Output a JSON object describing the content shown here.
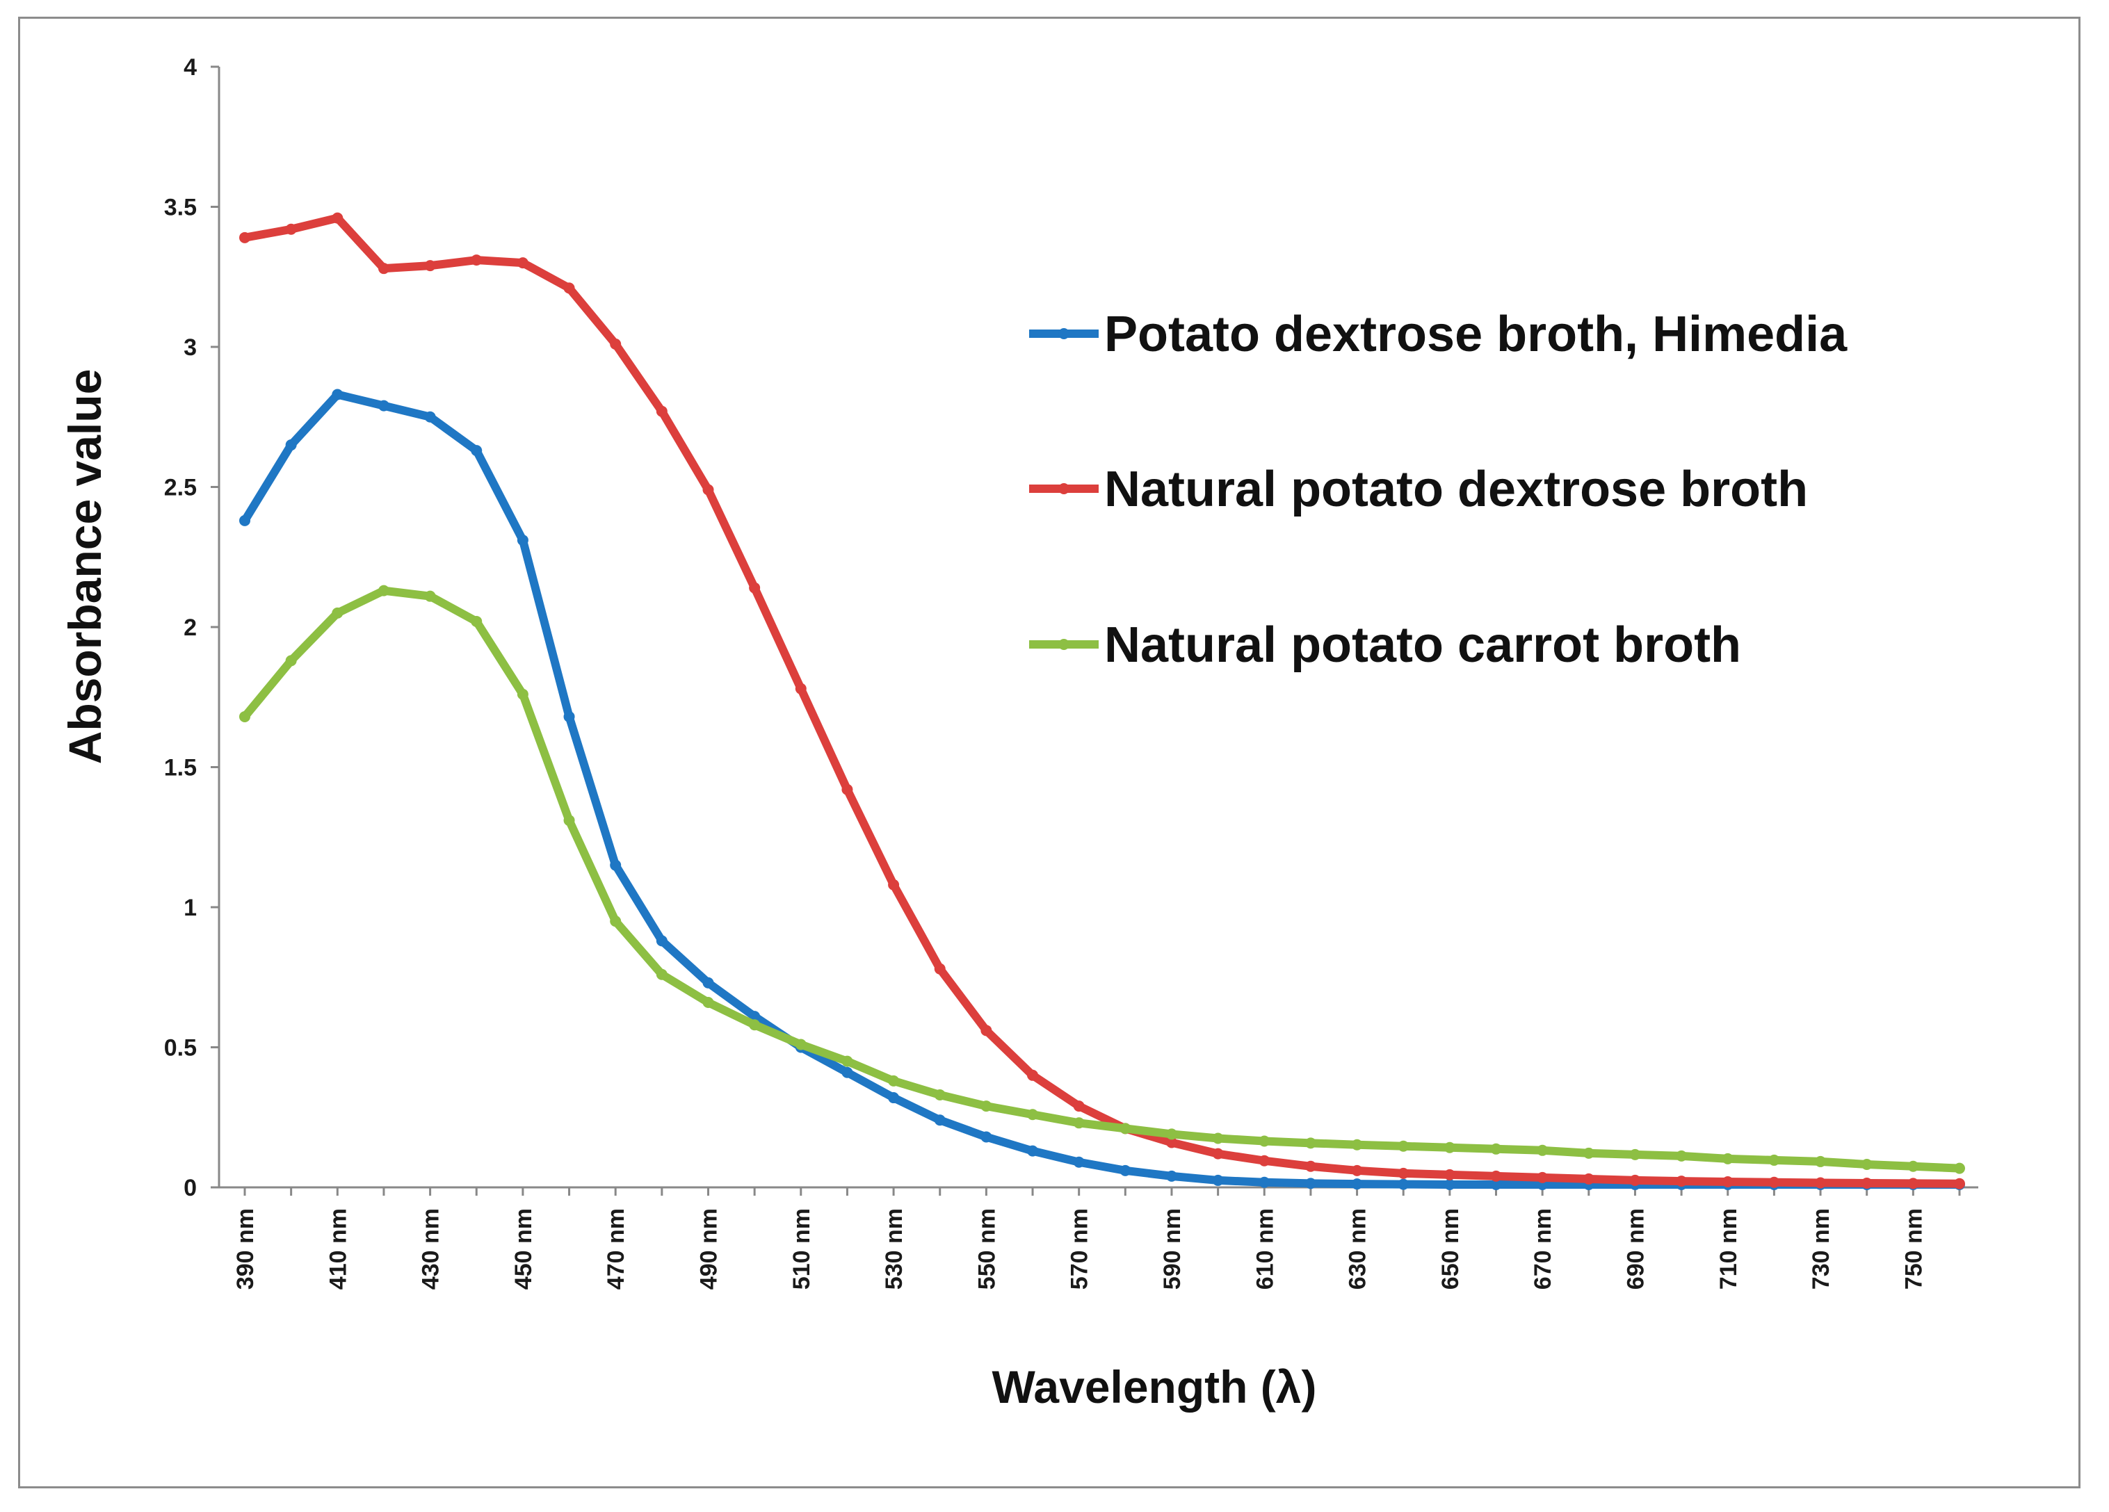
{
  "chart_data": {
    "type": "line",
    "title": "",
    "xlabel": "Wavelength (λ)",
    "ylabel": "Absorbance value",
    "ylim": [
      0,
      4
    ],
    "yticks": [
      "0",
      "0.5",
      "1",
      "1.5",
      "2",
      "2.5",
      "3",
      "3.5",
      "4"
    ],
    "x": [
      390,
      400,
      410,
      420,
      430,
      440,
      450,
      460,
      470,
      480,
      490,
      500,
      510,
      520,
      530,
      540,
      550,
      560,
      570,
      580,
      590,
      600,
      610,
      620,
      630,
      640,
      650,
      660,
      670,
      680,
      690,
      700,
      710,
      720,
      730,
      740,
      750,
      760
    ],
    "xtick_labels": [
      "390 nm",
      "410 nm",
      "430 nm",
      "450 nm",
      "470 nm",
      "490 nm",
      "510 nm",
      "530 nm",
      "550 nm",
      "570 nm",
      "590 nm",
      "610 nm",
      "630 nm",
      "650 nm",
      "670 nm",
      "690 nm",
      "710 nm",
      "730 nm",
      "750 nm"
    ],
    "legend_position": "right",
    "series": [
      {
        "name": "Potato dextrose broth, Himedia",
        "color": "#1f77c4",
        "values": [
          2.38,
          2.65,
          2.83,
          2.79,
          2.75,
          2.63,
          2.31,
          1.68,
          1.15,
          0.88,
          0.73,
          0.61,
          0.5,
          0.41,
          0.32,
          0.24,
          0.18,
          0.13,
          0.09,
          0.06,
          0.04,
          0.025,
          0.018,
          0.014,
          0.012,
          0.011,
          0.01,
          0.01,
          0.01,
          0.01,
          0.01,
          0.01,
          0.01,
          0.01,
          0.01,
          0.01,
          0.01,
          0.01
        ]
      },
      {
        "name": "Natural potato dextrose broth",
        "color": "#dc3f3c",
        "values": [
          3.39,
          3.42,
          3.46,
          3.28,
          3.29,
          3.31,
          3.3,
          3.21,
          3.01,
          2.77,
          2.49,
          2.14,
          1.78,
          1.42,
          1.08,
          0.78,
          0.56,
          0.4,
          0.29,
          0.21,
          0.16,
          0.12,
          0.095,
          0.075,
          0.06,
          0.05,
          0.045,
          0.04,
          0.035,
          0.03,
          0.025,
          0.022,
          0.02,
          0.018,
          0.016,
          0.015,
          0.014,
          0.013
        ]
      },
      {
        "name": "Natural potato carrot broth",
        "color": "#8dbf43",
        "values": [
          1.68,
          1.88,
          2.05,
          2.13,
          2.11,
          2.02,
          1.76,
          1.31,
          0.95,
          0.76,
          0.66,
          0.58,
          0.51,
          0.45,
          0.38,
          0.33,
          0.29,
          0.26,
          0.23,
          0.21,
          0.19,
          0.175,
          0.165,
          0.158,
          0.152,
          0.147,
          0.142,
          0.137,
          0.132,
          0.122,
          0.117,
          0.112,
          0.102,
          0.097,
          0.092,
          0.082,
          0.075,
          0.068
        ]
      }
    ]
  }
}
